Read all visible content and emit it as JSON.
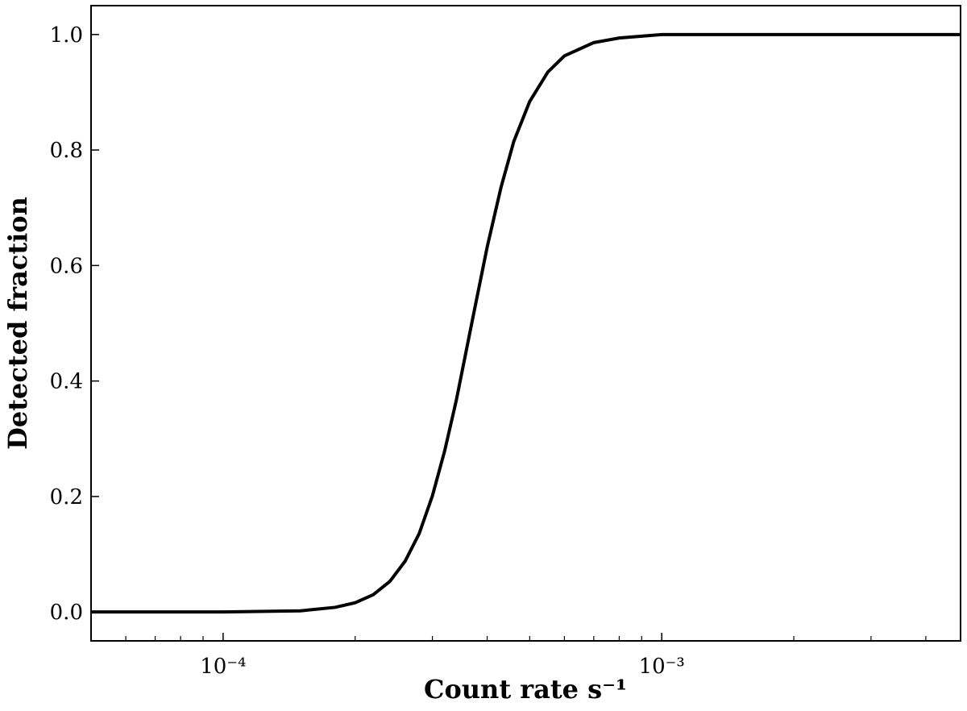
{
  "chart_data": {
    "type": "line",
    "log_x": true,
    "xlabel": "Count rate s⁻¹",
    "ylabel": "Detected fraction",
    "x": [
      5e-05,
      0.0001,
      0.00015,
      0.00018,
      0.0002,
      0.00022,
      0.00024,
      0.00026,
      0.00028,
      0.0003,
      0.00032,
      0.00034,
      0.00037,
      0.0004,
      0.00043,
      0.00046,
      0.0005,
      0.00055,
      0.0006,
      0.0007,
      0.0008,
      0.001,
      0.0015,
      0.0048
    ],
    "values": [
      0,
      0,
      0.002,
      0.008,
      0.016,
      0.03,
      0.053,
      0.088,
      0.136,
      0.201,
      0.279,
      0.366,
      0.505,
      0.632,
      0.735,
      0.815,
      0.884,
      0.935,
      0.963,
      0.986,
      0.994,
      1.0,
      1.0,
      1.0
    ],
    "color": "#000000",
    "xlim": [
      5e-05,
      0.0048
    ],
    "ylim": [
      -0.05,
      1.05
    ],
    "xticks": [
      {
        "value": 0.0001,
        "label": "10⁻⁴"
      },
      {
        "value": 0.001,
        "label": "10⁻³"
      }
    ],
    "xminor_ticks": [
      6e-05,
      7e-05,
      8e-05,
      9e-05,
      0.0002,
      0.0003,
      0.0004,
      0.0005,
      0.0006,
      0.0007,
      0.0008,
      0.0009,
      0.002,
      0.003,
      0.004
    ],
    "yticks": [
      {
        "value": 0,
        "label": "0.0"
      },
      0.2,
      0.4,
      0.6,
      0.8,
      {
        "value": 1,
        "label": "1.0"
      }
    ]
  }
}
